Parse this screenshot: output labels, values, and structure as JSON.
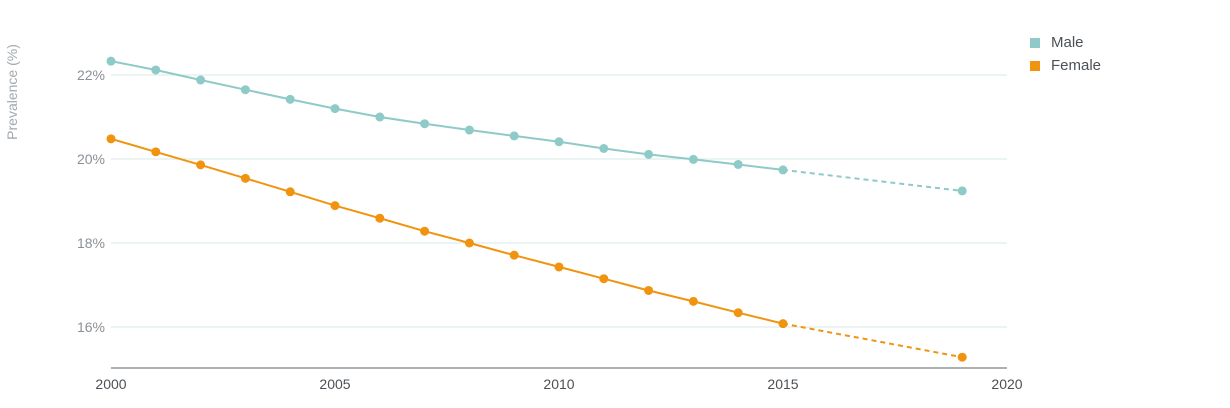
{
  "chart_data": {
    "type": "line",
    "ylabel": "Prevalence (%)",
    "xlabel": "",
    "xlim": [
      2000,
      2020
    ],
    "ylim": [
      15,
      23
    ],
    "x_ticks": [
      2000,
      2005,
      2010,
      2015,
      2020
    ],
    "y_ticks": [
      16,
      18,
      20,
      22
    ],
    "y_tick_labels": [
      "16%",
      "18%",
      "20%",
      "22%"
    ],
    "grid": "horizontal",
    "legend_position": "top-right",
    "series": [
      {
        "name": "Male",
        "color": "#8ecac7",
        "x": [
          2000,
          2001,
          2002,
          2003,
          2004,
          2005,
          2006,
          2007,
          2008,
          2009,
          2010,
          2011,
          2012,
          2013,
          2014,
          2015,
          2019
        ],
        "values": [
          22.33,
          22.12,
          21.88,
          21.65,
          21.42,
          21.2,
          21.0,
          20.84,
          20.69,
          20.55,
          20.41,
          20.25,
          20.11,
          19.99,
          19.87,
          19.74,
          19.24
        ],
        "projected_from_index": 15
      },
      {
        "name": "Female",
        "color": "#f0940f",
        "x": [
          2000,
          2001,
          2002,
          2003,
          2004,
          2005,
          2006,
          2007,
          2008,
          2009,
          2010,
          2011,
          2012,
          2013,
          2014,
          2015,
          2019
        ],
        "values": [
          20.48,
          20.17,
          19.86,
          19.54,
          19.22,
          18.89,
          18.59,
          18.28,
          18.0,
          17.71,
          17.43,
          17.15,
          16.87,
          16.61,
          16.34,
          16.08,
          15.28
        ],
        "projected_from_index": 15
      }
    ]
  }
}
